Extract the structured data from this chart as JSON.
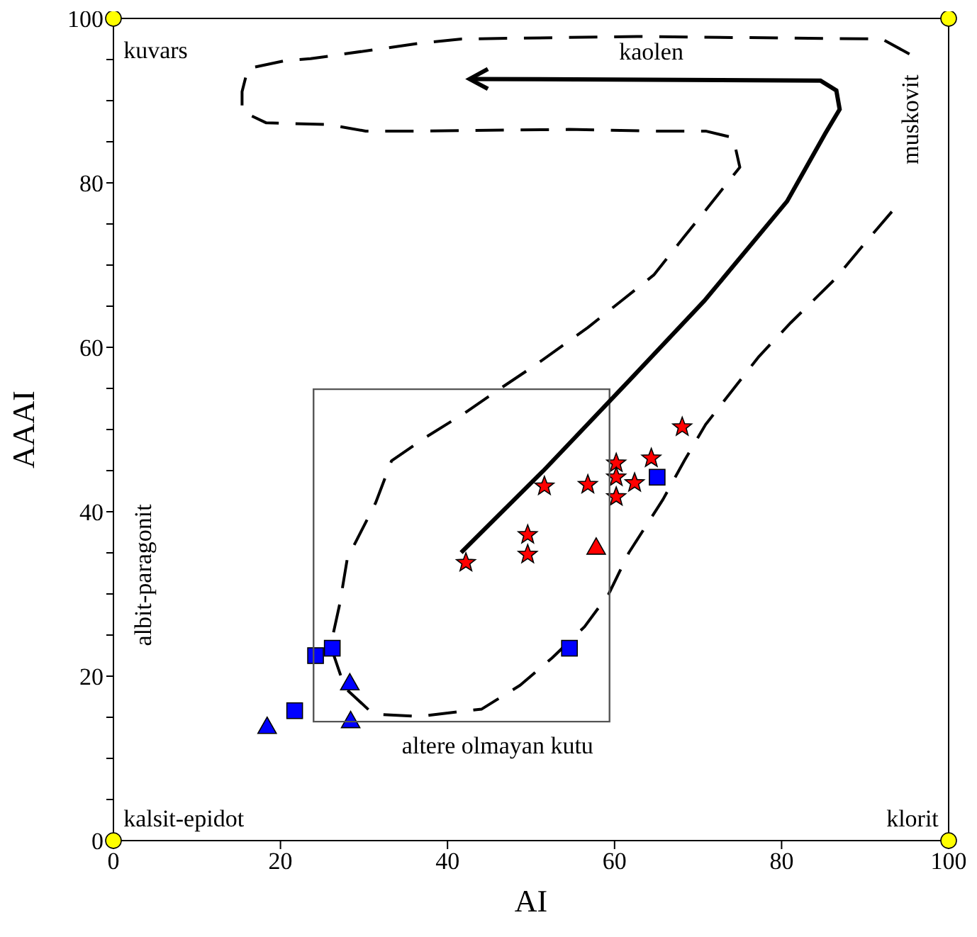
{
  "chart_data": {
    "type": "scatter",
    "xlabel": "AI",
    "ylabel": "AAAI",
    "xlim": [
      0,
      100
    ],
    "xticks": [
      0,
      20,
      40,
      60,
      80,
      100
    ],
    "ylim": [
      0,
      100
    ],
    "yticks": [
      0,
      {
        "value": 5,
        "label": null
      },
      {
        "value": 10,
        "label": null
      },
      {
        "value": 15,
        "label": null
      },
      20,
      {
        "value": 25,
        "label": null
      },
      {
        "value": 30,
        "label": null
      },
      {
        "value": 35,
        "label": null
      },
      40,
      {
        "value": 45,
        "label": null
      },
      {
        "value": 50,
        "label": null
      },
      {
        "value": 55,
        "label": null
      },
      60,
      {
        "value": 65,
        "label": null
      },
      {
        "value": 70,
        "label": null
      },
      {
        "value": 75,
        "label": null
      },
      80,
      {
        "value": 85,
        "label": null
      },
      {
        "value": 90,
        "label": null
      },
      {
        "value": 95,
        "label": null
      },
      100
    ],
    "grid": false,
    "series": [
      {
        "type": "line",
        "color": "#000000",
        "line_style": "dashed",
        "marker": "none",
        "x": [
          93.2,
          90.0,
          86.4,
          81.1,
          77.3,
          74.2,
          70.9,
          68.4,
          65.8,
          61.7,
          59.3,
          56.4,
          52.5,
          48.7,
          44.1,
          36.5,
          31.1,
          27.7,
          26.0,
          27.1,
          28.0,
          31.4,
          33.3,
          37.3,
          41.9,
          45.9,
          50.6,
          56.8,
          61.0,
          64.7,
          68.3,
          71.4,
          75.0,
          74.2,
          70.9,
          65.0,
          54.5,
          35.7,
          30.2,
          25.6,
          18.3,
          15.4,
          15.4,
          16.1,
          20.7,
          23.6,
          36.8,
          41.7,
          62.7,
          92.0,
          95.8
        ],
        "values": [
          76.5,
          72.7,
          68.3,
          63.0,
          58.9,
          54.9,
          50.6,
          46.3,
          41.5,
          35.0,
          30.0,
          26.0,
          22.2,
          18.9,
          16.0,
          15.1,
          15.4,
          18.6,
          23.7,
          28.8,
          34.3,
          41.1,
          46.2,
          49.0,
          51.9,
          54.7,
          57.9,
          62.4,
          65.8,
          68.8,
          73.4,
          77.3,
          81.9,
          85.5,
          86.3,
          86.3,
          86.5,
          86.3,
          86.3,
          87.1,
          87.3,
          88.7,
          91.1,
          93.9,
          94.9,
          95.1,
          97.0,
          97.5,
          97.8,
          97.5,
          95.4
        ]
      },
      {
        "color": "#ff0000",
        "marker": "star",
        "x": [
          68.1,
          64.4,
          60.2,
          60.2,
          62.4,
          56.8,
          51.6,
          60.2,
          49.6,
          49.6,
          42.2
        ],
        "values": [
          50.3,
          46.5,
          45.9,
          44.2,
          43.5,
          43.3,
          43.1,
          41.8,
          37.2,
          34.8,
          33.8
        ]
      },
      {
        "color": "#ff0000",
        "marker": "triangle",
        "x": [
          57.8
        ],
        "values": [
          35.7
        ]
      },
      {
        "color": "#0000ff",
        "marker": "square",
        "x": [
          65.1,
          26.2,
          24.2,
          54.6,
          21.7
        ],
        "values": [
          44.2,
          23.4,
          22.5,
          23.4,
          15.8
        ]
      },
      {
        "color": "#0000ff",
        "marker": "triangle",
        "x": [
          28.3,
          28.4,
          18.4
        ],
        "values": [
          19.2,
          14.6,
          13.9
        ]
      },
      {
        "color": "#ffff00",
        "marker": "circle",
        "x": [
          0,
          0,
          100,
          100
        ],
        "values": [
          0,
          100,
          100,
          0
        ]
      }
    ],
    "annotations": [
      "kuvars",
      "kaolen",
      "muskovit",
      "albit-paragonit",
      "altere olmayan kutu",
      "kalsit-epidot",
      "klorit"
    ]
  }
}
